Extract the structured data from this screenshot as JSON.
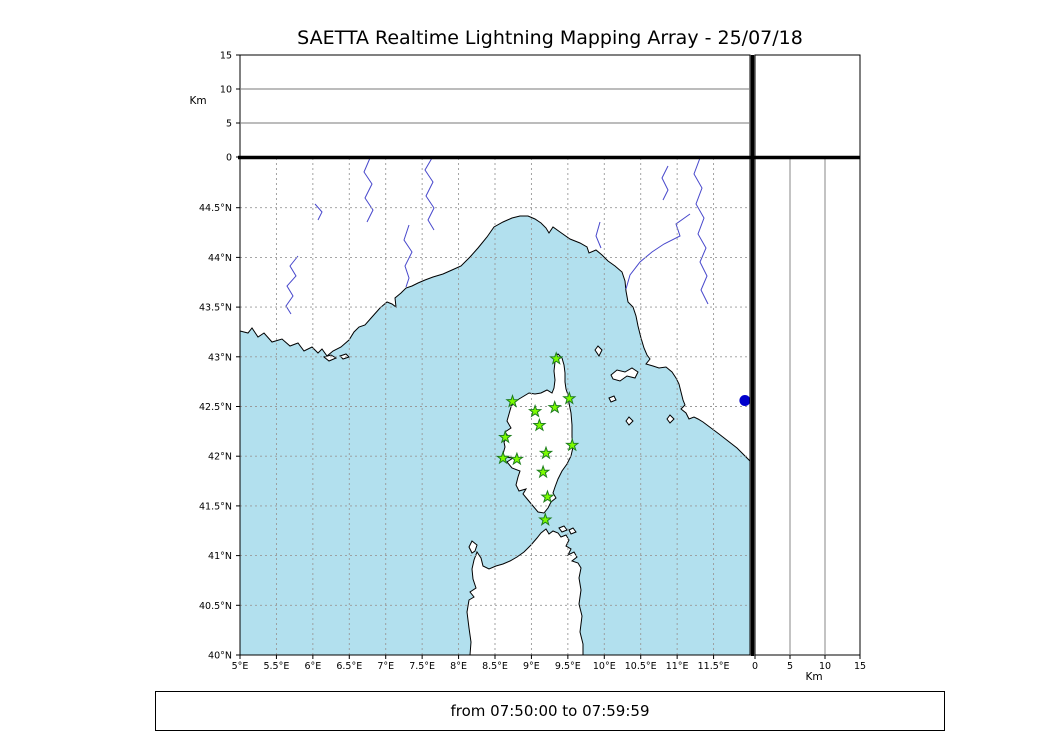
{
  "title": "SAETTA Realtime Lightning Mapping Array - 25/07/18",
  "footer": {
    "text": "from 07:50:00 to 07:59:59"
  },
  "map": {
    "lon_min": 5,
    "lon_max": 12,
    "lat_min": 40,
    "lat_max": 45,
    "x_ticks": [
      5,
      5.5,
      6,
      6.5,
      7,
      7.5,
      8,
      8.5,
      9,
      9.5,
      10,
      10.5,
      11,
      11.5
    ],
    "x_tick_labels": [
      "5°E",
      "5.5°E",
      "6°E",
      "6.5°E",
      "7°E",
      "7.5°E",
      "8°E",
      "8.5°E",
      "9°E",
      "9.5°E",
      "10°E",
      "10.5°E",
      "11°E",
      "11.5°E"
    ],
    "y_ticks": [
      44.5,
      44,
      43.5,
      43,
      42.5,
      42,
      41.5,
      41,
      40.5,
      40
    ],
    "y_tick_labels": [
      "44.5°N",
      "44°N",
      "43.5°N",
      "43°N",
      "42.5°N",
      "42°N",
      "41.5°N",
      "41°N",
      "40.5°N",
      "40°N"
    ]
  },
  "altitude": {
    "unit_label": "Km",
    "max_km": 15,
    "ticks": [
      0,
      5,
      10,
      15
    ],
    "grid_km": [
      5,
      10
    ]
  },
  "stations": [
    {
      "lon": 9.34,
      "lat": 42.98
    },
    {
      "lon": 8.74,
      "lat": 42.55
    },
    {
      "lon": 9.05,
      "lat": 42.45
    },
    {
      "lon": 9.32,
      "lat": 42.49
    },
    {
      "lon": 9.52,
      "lat": 42.58
    },
    {
      "lon": 9.11,
      "lat": 42.31
    },
    {
      "lon": 8.64,
      "lat": 42.19
    },
    {
      "lon": 9.56,
      "lat": 42.11
    },
    {
      "lon": 8.61,
      "lat": 41.98
    },
    {
      "lon": 8.8,
      "lat": 41.97
    },
    {
      "lon": 9.2,
      "lat": 42.03
    },
    {
      "lon": 9.16,
      "lat": 41.84
    },
    {
      "lon": 9.22,
      "lat": 41.59
    },
    {
      "lon": 9.19,
      "lat": 41.36
    }
  ],
  "detections": [
    {
      "lon": 11.93,
      "lat": 42.56
    }
  ],
  "colors": {
    "sea": "#b2e0ee",
    "land": "#ffffff",
    "coast": "#000000",
    "river": "#4848cc",
    "grid": "#999999",
    "station_fill": "#7CFC00",
    "station_edge": "#1e7d1e",
    "detection": "#0000cc"
  }
}
